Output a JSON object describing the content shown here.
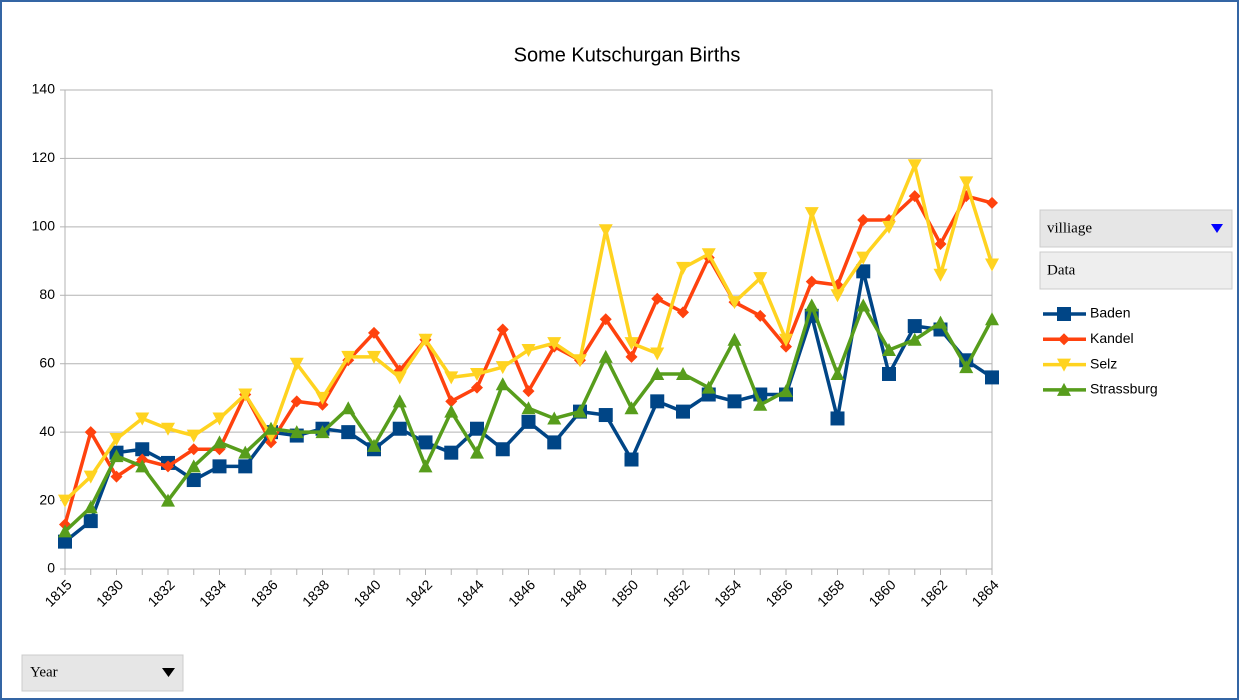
{
  "chart_data": {
    "type": "line",
    "title": "Some Kutschurgan Births",
    "categories": [
      "1815",
      null,
      "1830",
      null,
      "1832",
      null,
      "1834",
      null,
      "1836",
      null,
      "1838",
      null,
      "1840",
      null,
      "1842",
      null,
      "1844",
      null,
      "1846",
      null,
      "1848",
      null,
      "1850",
      null,
      "1852",
      null,
      "1854",
      null,
      "1856",
      null,
      "1858",
      null,
      "1860",
      null,
      "1862",
      null,
      "1864"
    ],
    "series": [
      {
        "name": "Baden",
        "color": "#004586",
        "marker": "square",
        "values": [
          8,
          14,
          34,
          35,
          31,
          26,
          30,
          30,
          40,
          39,
          41,
          40,
          35,
          41,
          37,
          34,
          41,
          35,
          43,
          37,
          46,
          45,
          32,
          49,
          46,
          51,
          49,
          51,
          51,
          74,
          44,
          87,
          57,
          71,
          70,
          61,
          56
        ]
      },
      {
        "name": "Kandel",
        "color": "#ff420e",
        "marker": "diamond",
        "values": [
          13,
          40,
          27,
          32,
          30,
          35,
          35,
          51,
          37,
          49,
          48,
          61,
          69,
          58,
          67,
          49,
          53,
          70,
          52,
          65,
          61,
          73,
          62,
          79,
          75,
          91,
          78,
          74,
          65,
          84,
          83,
          102,
          102,
          109,
          95,
          109,
          107
        ]
      },
      {
        "name": "Selz",
        "color": "#ffd320",
        "marker": "triangle-down",
        "values": [
          20,
          27,
          38,
          44,
          41,
          39,
          44,
          51,
          39,
          60,
          50,
          62,
          62,
          56,
          67,
          56,
          57,
          59,
          64,
          66,
          61,
          99,
          66,
          63,
          88,
          92,
          78,
          85,
          67,
          104,
          80,
          91,
          100,
          118,
          86,
          113,
          89
        ]
      },
      {
        "name": "Strassburg",
        "color": "#579d1c",
        "marker": "triangle-up",
        "values": [
          11,
          18,
          33,
          30,
          20,
          30,
          37,
          34,
          41,
          40,
          40,
          47,
          36,
          49,
          30,
          46,
          34,
          54,
          47,
          44,
          46,
          62,
          47,
          57,
          57,
          53,
          67,
          48,
          52,
          77,
          57,
          77,
          64,
          67,
          72,
          59,
          73
        ]
      }
    ],
    "ylim": [
      0,
      140
    ],
    "yticks": [
      0,
      20,
      40,
      60,
      80,
      100,
      120,
      140
    ],
    "grid": true,
    "legend": "right"
  },
  "controls": {
    "column_field": "villiage",
    "data_field": "Data",
    "row_field": "Year"
  }
}
